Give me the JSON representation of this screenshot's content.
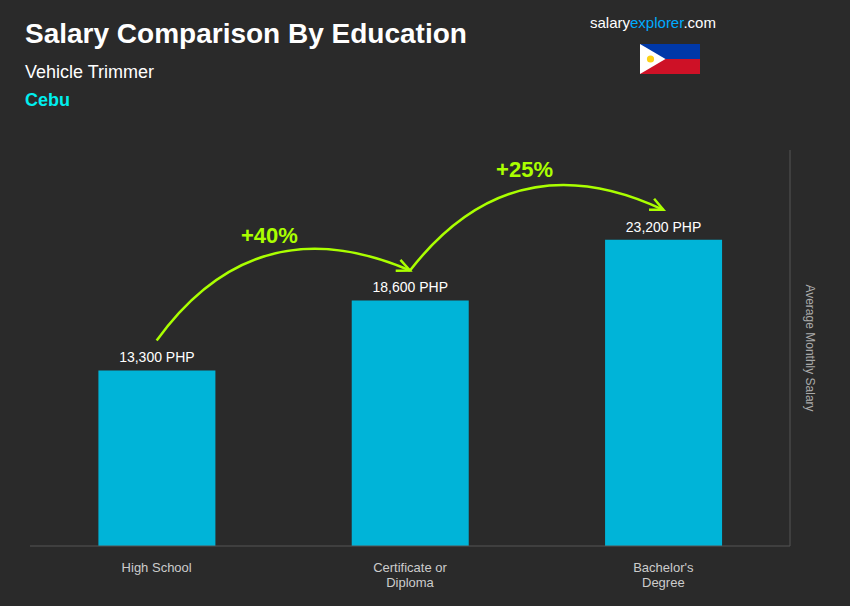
{
  "chart_data": {
    "type": "bar",
    "title": "Salary Comparison By Education",
    "subtitle": "Vehicle Trimmer",
    "ylabel": "Average Monthly Salary",
    "categories": [
      "High School",
      "Certificate or\nDiploma",
      "Bachelor's\nDegree"
    ],
    "values": [
      13300,
      18600,
      23200
    ],
    "value_labels": [
      "13,300 PHP",
      "18,600 PHP",
      "23,200 PHP"
    ],
    "data_labels": true,
    "color": "#00b4d8",
    "ylim": [
      0,
      30000
    ],
    "tick_labels": "x",
    "grid": false,
    "annotations": [
      {
        "text": "Cebu",
        "color": "#00eeee"
      },
      {
        "text": [
          "salary",
          "explorer",
          ".com"
        ],
        "colors": [
          "#ffffff",
          "#00aaff",
          "#ffffff"
        ]
      },
      {
        "text": "+40%",
        "from": "High School",
        "to": "Certificate or\nDiploma",
        "color": "#aaff00"
      },
      {
        "text": "+25%",
        "from": "Certificate or\nDiploma",
        "to": "Bachelor's\nDegree",
        "color": "#aaff00"
      }
    ]
  }
}
